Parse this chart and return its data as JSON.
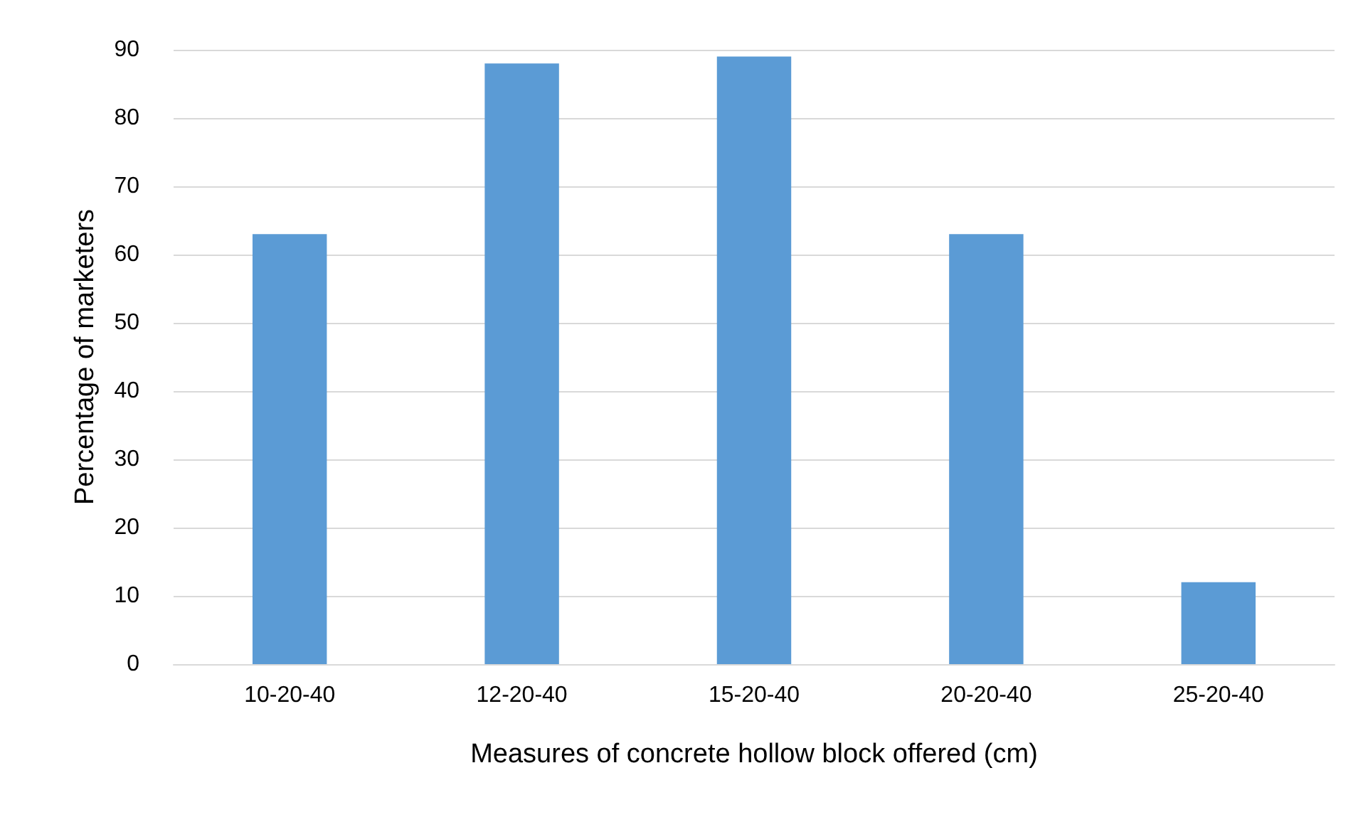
{
  "chart_data": {
    "type": "bar",
    "xlabel": "Measures of concrete hollow block offered (cm)",
    "ylabel": "Percentage of marketers",
    "categories": [
      "10-20-40",
      "12-20-40",
      "15-20-40",
      "20-20-40",
      "25-20-40"
    ],
    "values": [
      63,
      88,
      89,
      63,
      12
    ],
    "color": "#5b9bd5",
    "ylim": [
      0,
      90
    ],
    "yticks": [
      0,
      10,
      20,
      30,
      40,
      50,
      60,
      70,
      80,
      90
    ],
    "grid": "y"
  }
}
